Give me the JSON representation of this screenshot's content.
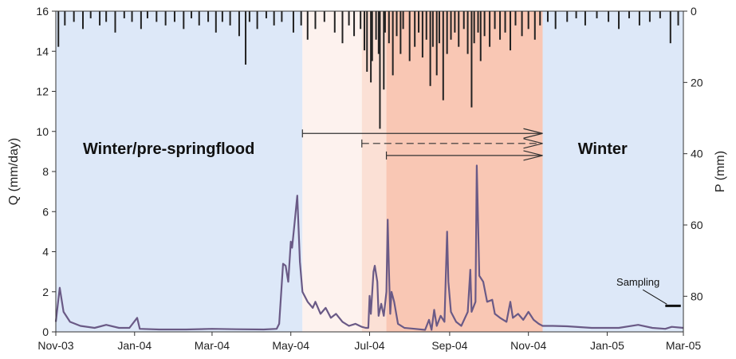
{
  "chart_data": {
    "type": "line",
    "x_type": "date",
    "xlim": [
      "2003-11-01",
      "2005-03-01"
    ],
    "x_ticks": [
      {
        "date": "2003-11-01",
        "label": "Nov-03"
      },
      {
        "date": "2004-01-01",
        "label": "Jan-04"
      },
      {
        "date": "2004-03-01",
        "label": "Mar-04"
      },
      {
        "date": "2004-05-01",
        "label": "May-04"
      },
      {
        "date": "2004-07-01",
        "label": "Jul-04"
      },
      {
        "date": "2004-09-01",
        "label": "Sep-04"
      },
      {
        "date": "2004-11-01",
        "label": "Nov-04"
      },
      {
        "date": "2005-01-01",
        "label": "Jan-05"
      },
      {
        "date": "2005-03-01",
        "label": "Mar-05"
      }
    ],
    "ylabel": "Q (mm/day)",
    "ylim": [
      0,
      16
    ],
    "y_ticks": [
      "0",
      "2",
      "4",
      "6",
      "8",
      "10",
      "12",
      "14",
      "16"
    ],
    "y2label": "P (mm)",
    "y2lim": [
      0,
      90
    ],
    "y2_inverted": true,
    "y2_ticks": [
      "0",
      "20",
      "40",
      "60",
      "80"
    ],
    "grid": false,
    "periods": [
      {
        "start": "2003-11-01",
        "end": "2004-05-10",
        "color": "#dde8f8",
        "label": "Winter/pre-springflood"
      },
      {
        "start": "2004-05-10",
        "end": "2004-06-25",
        "color": "#fdf2ee",
        "label": ""
      },
      {
        "start": "2004-06-25",
        "end": "2004-07-14",
        "color": "#fbe0d5",
        "label": ""
      },
      {
        "start": "2004-07-14",
        "end": "2004-11-12",
        "color": "#f9c7b4",
        "label": ""
      },
      {
        "start": "2004-11-12",
        "end": "2005-03-01",
        "color": "#dde8f8",
        "label": "Winter"
      }
    ],
    "arrows": [
      {
        "start": "2004-05-10",
        "end": "2004-11-12",
        "y": 9.9,
        "style": "solid"
      },
      {
        "start": "2004-06-25",
        "end": "2004-11-12",
        "y": 9.4,
        "style": "dashed"
      },
      {
        "start": "2004-07-14",
        "end": "2004-11-12",
        "y": 8.8,
        "style": "solid"
      }
    ],
    "annotations": [
      {
        "text": "Sampling",
        "date": "2005-02-05",
        "y": 2.5
      }
    ],
    "sampling_bar": {
      "start": "2005-02-15",
      "end": "2005-02-27",
      "y": 1.3
    },
    "series": [
      {
        "type": "line",
        "axis": "left",
        "color": "#6a5a86",
        "points": [
          [
            "2003-11-01",
            0.5
          ],
          [
            "2003-11-04",
            2.2
          ],
          [
            "2003-11-07",
            1.0
          ],
          [
            "2003-11-12",
            0.5
          ],
          [
            "2003-11-20",
            0.3
          ],
          [
            "2003-12-01",
            0.2
          ],
          [
            "2003-12-10",
            0.35
          ],
          [
            "2003-12-20",
            0.2
          ],
          [
            "2003-12-28",
            0.2
          ],
          [
            "2004-01-03",
            0.7
          ],
          [
            "2004-01-05",
            0.15
          ],
          [
            "2004-01-20",
            0.12
          ],
          [
            "2004-02-10",
            0.12
          ],
          [
            "2004-03-01",
            0.15
          ],
          [
            "2004-03-20",
            0.13
          ],
          [
            "2004-04-10",
            0.12
          ],
          [
            "2004-04-20",
            0.15
          ],
          [
            "2004-04-22",
            0.4
          ],
          [
            "2004-04-25",
            3.4
          ],
          [
            "2004-04-27",
            3.3
          ],
          [
            "2004-04-29",
            2.5
          ],
          [
            "2004-05-01",
            4.5
          ],
          [
            "2004-05-02",
            4.2
          ],
          [
            "2004-05-04",
            5.5
          ],
          [
            "2004-05-06",
            6.8
          ],
          [
            "2004-05-08",
            3.5
          ],
          [
            "2004-05-10",
            2.0
          ],
          [
            "2004-05-14",
            1.5
          ],
          [
            "2004-05-18",
            1.2
          ],
          [
            "2004-05-20",
            1.5
          ],
          [
            "2004-05-24",
            0.9
          ],
          [
            "2004-05-28",
            1.2
          ],
          [
            "2004-06-01",
            0.7
          ],
          [
            "2004-06-05",
            0.9
          ],
          [
            "2004-06-10",
            0.5
          ],
          [
            "2004-06-15",
            0.3
          ],
          [
            "2004-06-20",
            0.4
          ],
          [
            "2004-06-25",
            0.25
          ],
          [
            "2004-06-28",
            0.2
          ],
          [
            "2004-06-30",
            0.2
          ],
          [
            "2004-07-01",
            1.8
          ],
          [
            "2004-07-02",
            0.9
          ],
          [
            "2004-07-04",
            3.0
          ],
          [
            "2004-07-05",
            3.3
          ],
          [
            "2004-07-07",
            2.5
          ],
          [
            "2004-07-08",
            0.8
          ],
          [
            "2004-07-10",
            1.4
          ],
          [
            "2004-07-12",
            0.8
          ],
          [
            "2004-07-14",
            2.0
          ],
          [
            "2004-07-15",
            5.6
          ],
          [
            "2004-07-16",
            3.0
          ],
          [
            "2004-07-17",
            0.9
          ],
          [
            "2004-07-18",
            2.0
          ],
          [
            "2004-07-20",
            1.5
          ],
          [
            "2004-07-23",
            0.4
          ],
          [
            "2004-07-28",
            0.2
          ],
          [
            "2004-08-05",
            0.15
          ],
          [
            "2004-08-13",
            0.1
          ],
          [
            "2004-08-16",
            0.6
          ],
          [
            "2004-08-18",
            0.1
          ],
          [
            "2004-08-20",
            1.1
          ],
          [
            "2004-08-22",
            0.3
          ],
          [
            "2004-08-25",
            0.8
          ],
          [
            "2004-08-28",
            0.5
          ],
          [
            "2004-08-30",
            5.0
          ],
          [
            "2004-08-31",
            2.5
          ],
          [
            "2004-09-02",
            1.0
          ],
          [
            "2004-09-06",
            0.5
          ],
          [
            "2004-09-10",
            0.3
          ],
          [
            "2004-09-15",
            1.0
          ],
          [
            "2004-09-17",
            3.1
          ],
          [
            "2004-09-18",
            1.0
          ],
          [
            "2004-09-21",
            1.5
          ],
          [
            "2004-09-22",
            8.3
          ],
          [
            "2004-09-24",
            2.8
          ],
          [
            "2004-09-27",
            2.5
          ],
          [
            "2004-09-30",
            1.5
          ],
          [
            "2004-10-04",
            1.6
          ],
          [
            "2004-10-06",
            0.9
          ],
          [
            "2004-10-10",
            0.7
          ],
          [
            "2004-10-15",
            0.5
          ],
          [
            "2004-10-18",
            1.5
          ],
          [
            "2004-10-20",
            0.7
          ],
          [
            "2004-10-24",
            0.9
          ],
          [
            "2004-10-28",
            0.6
          ],
          [
            "2004-11-01",
            1.0
          ],
          [
            "2004-11-05",
            0.6
          ],
          [
            "2004-11-09",
            0.4
          ],
          [
            "2004-11-12",
            0.3
          ],
          [
            "2004-11-20",
            0.3
          ],
          [
            "2004-12-01",
            0.28
          ],
          [
            "2004-12-20",
            0.2
          ],
          [
            "2005-01-10",
            0.2
          ],
          [
            "2005-01-25",
            0.35
          ],
          [
            "2005-02-05",
            0.2
          ],
          [
            "2005-02-15",
            0.15
          ],
          [
            "2005-02-20",
            0.25
          ],
          [
            "2005-03-01",
            0.2
          ]
        ]
      },
      {
        "type": "bar",
        "axis": "right",
        "color": "#222222",
        "points": [
          [
            "2003-11-03",
            10
          ],
          [
            "2003-11-08",
            4
          ],
          [
            "2003-11-15",
            3
          ],
          [
            "2003-11-22",
            5
          ],
          [
            "2003-11-28",
            2
          ],
          [
            "2003-12-05",
            4
          ],
          [
            "2003-12-10",
            3
          ],
          [
            "2003-12-17",
            6
          ],
          [
            "2003-12-24",
            2
          ],
          [
            "2003-12-30",
            3
          ],
          [
            "2004-01-06",
            5
          ],
          [
            "2004-01-11",
            2
          ],
          [
            "2004-01-18",
            3
          ],
          [
            "2004-01-25",
            4
          ],
          [
            "2004-02-01",
            3
          ],
          [
            "2004-02-08",
            5
          ],
          [
            "2004-02-14",
            2
          ],
          [
            "2004-02-20",
            4
          ],
          [
            "2004-02-27",
            3
          ],
          [
            "2004-03-04",
            6
          ],
          [
            "2004-03-09",
            3
          ],
          [
            "2004-03-15",
            4
          ],
          [
            "2004-03-22",
            7
          ],
          [
            "2004-03-27",
            15
          ],
          [
            "2004-03-30",
            3
          ],
          [
            "2004-04-05",
            5
          ],
          [
            "2004-04-12",
            2
          ],
          [
            "2004-04-18",
            4
          ],
          [
            "2004-04-24",
            3
          ],
          [
            "2004-05-03",
            6
          ],
          [
            "2004-05-09",
            4
          ],
          [
            "2004-05-14",
            8
          ],
          [
            "2004-05-20",
            5
          ],
          [
            "2004-05-27",
            3
          ],
          [
            "2004-06-04",
            6
          ],
          [
            "2004-06-10",
            9
          ],
          [
            "2004-06-15",
            4
          ],
          [
            "2004-06-19",
            7
          ],
          [
            "2004-06-24",
            5
          ],
          [
            "2004-06-27",
            11
          ],
          [
            "2004-06-29",
            17
          ],
          [
            "2004-07-02",
            20
          ],
          [
            "2004-07-03",
            14
          ],
          [
            "2004-07-06",
            8
          ],
          [
            "2004-07-08",
            12
          ],
          [
            "2004-07-09",
            33
          ],
          [
            "2004-07-12",
            22
          ],
          [
            "2004-07-13",
            6
          ],
          [
            "2004-07-16",
            9
          ],
          [
            "2004-07-19",
            18
          ],
          [
            "2004-07-22",
            7
          ],
          [
            "2004-07-25",
            12
          ],
          [
            "2004-07-27",
            5
          ],
          [
            "2004-08-01",
            14
          ],
          [
            "2004-08-05",
            10
          ],
          [
            "2004-08-08",
            6
          ],
          [
            "2004-08-11",
            13
          ],
          [
            "2004-08-14",
            8
          ],
          [
            "2004-08-17",
            21
          ],
          [
            "2004-08-19",
            10
          ],
          [
            "2004-08-22",
            18
          ],
          [
            "2004-08-24",
            9
          ],
          [
            "2004-08-27",
            25
          ],
          [
            "2004-08-30",
            12
          ],
          [
            "2004-09-02",
            8
          ],
          [
            "2004-09-05",
            6
          ],
          [
            "2004-09-08",
            10
          ],
          [
            "2004-09-12",
            5
          ],
          [
            "2004-09-15",
            12
          ],
          [
            "2004-09-18",
            27
          ],
          [
            "2004-09-20",
            9
          ],
          [
            "2004-09-23",
            6
          ],
          [
            "2004-09-25",
            14
          ],
          [
            "2004-09-28",
            7
          ],
          [
            "2004-10-02",
            10
          ],
          [
            "2004-10-06",
            5
          ],
          [
            "2004-10-10",
            8
          ],
          [
            "2004-10-14",
            6
          ],
          [
            "2004-10-18",
            11
          ],
          [
            "2004-10-22",
            4
          ],
          [
            "2004-10-27",
            7
          ],
          [
            "2004-11-01",
            5
          ],
          [
            "2004-11-06",
            8
          ],
          [
            "2004-11-10",
            4
          ],
          [
            "2004-11-16",
            3
          ],
          [
            "2004-11-22",
            5
          ],
          [
            "2004-12-01",
            3
          ],
          [
            "2004-12-08",
            2
          ],
          [
            "2004-12-15",
            4
          ],
          [
            "2004-12-24",
            2
          ],
          [
            "2005-01-02",
            3
          ],
          [
            "2005-01-10",
            5
          ],
          [
            "2005-01-18",
            2
          ],
          [
            "2005-01-26",
            4
          ],
          [
            "2005-02-03",
            3
          ],
          [
            "2005-02-11",
            2
          ],
          [
            "2005-02-19",
            9
          ],
          [
            "2005-02-25",
            4
          ]
        ]
      }
    ]
  }
}
